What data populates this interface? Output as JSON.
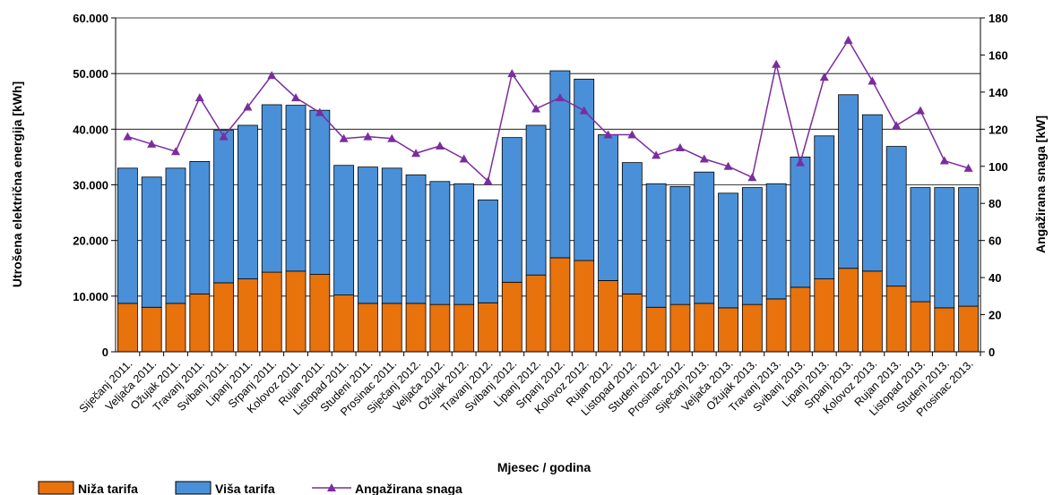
{
  "chart_data": {
    "type": "bar",
    "stacked": true,
    "categories": [
      "Siječanj 2011.",
      "Veljača 2011.",
      "Ožujak 2011.",
      "Travanj 2011.",
      "Svibanj 2011.",
      "Lipanj 2011.",
      "Srpanj 2011.",
      "Kolovoz 2011.",
      "Rujan 2011.",
      "Listopad 2011.",
      "Studeni 2011.",
      "Prosinac 2011.",
      "Siječanj 2012.",
      "Veljača 2012.",
      "Ožujak 2012.",
      "Travanj 2012.",
      "Svibanj 2012.",
      "Lipanj 2012.",
      "Srpanj 2012.",
      "Kolovoz 2012.",
      "Rujan 2012.",
      "Listopad 2012.",
      "Studeni 2012.",
      "Prosinac 2012.",
      "Siječanj 2013.",
      "Veljača 2013.",
      "Ožujak 2013.",
      "Travanj 2013.",
      "Svibanj 2013.",
      "Lipanj 2013.",
      "Srpanj 2013.",
      "Kolovoz 2013.",
      "Rujan 2013.",
      "Listopad 2013.",
      "Studeni 2013.",
      "Prosinac 2013."
    ],
    "series": [
      {
        "name": "Niža tarifa",
        "axis": "left",
        "kind": "bar",
        "color": "#E8720C",
        "values": [
          8700,
          8000,
          8700,
          10400,
          12400,
          13100,
          14300,
          14500,
          13900,
          10200,
          8700,
          8700,
          8700,
          8500,
          8500,
          8800,
          12500,
          13800,
          16900,
          16400,
          12800,
          10400,
          8000,
          8500,
          8700,
          7900,
          8500,
          9500,
          11600,
          13100,
          15000,
          14500,
          11800,
          9000,
          7900,
          8200
        ]
      },
      {
        "name": "Viša tarifa",
        "axis": "left",
        "kind": "bar",
        "color": "#4A90D9",
        "values": [
          24300,
          23400,
          24300,
          23800,
          27400,
          27600,
          30100,
          29800,
          29500,
          23300,
          24500,
          24300,
          23100,
          22100,
          21700,
          18500,
          26000,
          26900,
          33600,
          32600,
          26200,
          23600,
          22200,
          21200,
          23600,
          20600,
          21000,
          20700,
          23400,
          25700,
          31200,
          28100,
          25100,
          20500,
          21600,
          21300
        ]
      },
      {
        "name": "Angažirana snaga",
        "axis": "right",
        "kind": "line",
        "marker": "triangle",
        "color": "#7B2C9E",
        "values": [
          116,
          112,
          108,
          137,
          116,
          132,
          149,
          137,
          129,
          115,
          116,
          115,
          107,
          111,
          104,
          92,
          150,
          131,
          137,
          130,
          117,
          117,
          106,
          110,
          104,
          100,
          94,
          155,
          102,
          148,
          168,
          146,
          122,
          130,
          103,
          99
        ]
      }
    ],
    "xlabel": "Mjesec / godina",
    "ylabel": "Utrošena električna energija [kWh]",
    "ylabel_right": "Angažirana  snaga [kW]",
    "ylim": [
      0,
      60000
    ],
    "ylim_right": [
      0,
      180
    ],
    "yticks": [
      "0",
      "10.000",
      "20.000",
      "30.000",
      "40.000",
      "50.000",
      "60.000"
    ],
    "yticks_right": [
      "0",
      "20",
      "40",
      "60",
      "80",
      "100",
      "120",
      "140",
      "160",
      "180"
    ],
    "grid": true,
    "legend_position": "bottom-left"
  }
}
